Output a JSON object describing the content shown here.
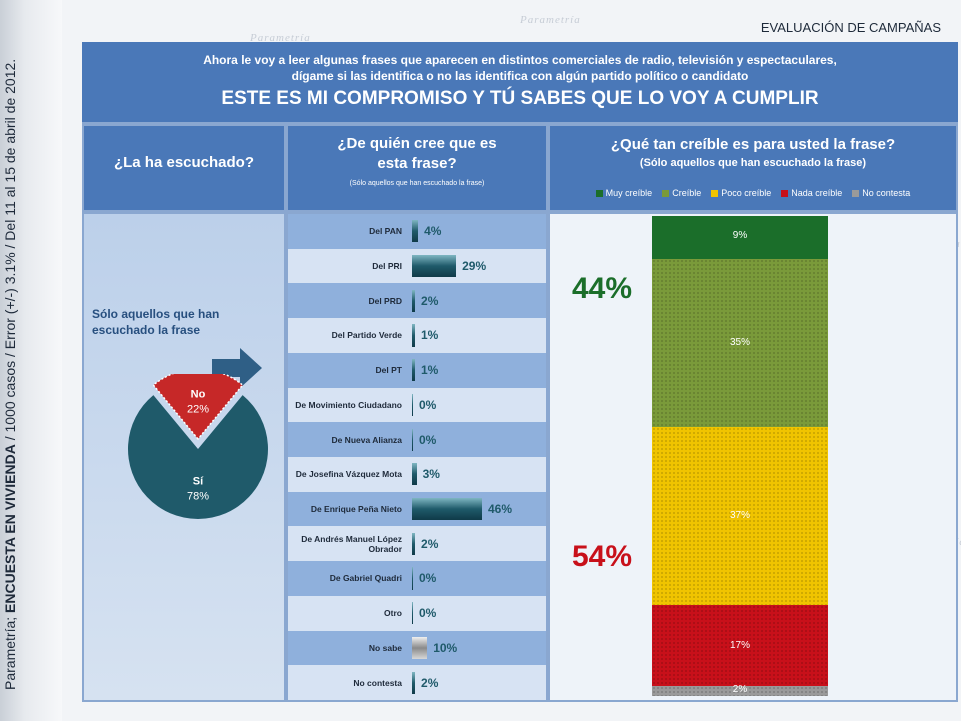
{
  "header": {
    "section_title": "EVALUACIÓN DE CAMPAÑAS"
  },
  "side_caption": {
    "prefix": "Parametría; ",
    "bold": "ENCUESTA EN VIVIENDA",
    "suffix": " / 1000 casos / Error (+/-) 3.1% / Del 11 al 15 de abril de 2012."
  },
  "question": {
    "line1": "Ahora le voy a leer algunas frases que aparecen en distintos comerciales de radio, televisión y espectaculares,",
    "line2": "dígame si las identifica o no las identifica con algún partido político o candidato",
    "phrase": "ESTE ES MI COMPROMISO Y TÚ SABES QUE LO VOY A CUMPLIR"
  },
  "columns": {
    "col1_title": "¿La ha escuchado?",
    "col2_title_line1": "¿De quién cree que es",
    "col2_title_line2": "esta frase?",
    "col2_note": "(Sólo aquellos que han escuchado la frase)",
    "col3_title": "¿Qué tan creíble es para usted la frase?",
    "col3_note": "(Sólo aquellos que han escuchado la frase)"
  },
  "pie_note": "Sólo aquellos que han escuchado la frase",
  "colors": {
    "teal": "#1f5a6a",
    "red": "#c62828",
    "muy": "#1b6e2a",
    "creible": "#7a9a3a",
    "poco": "#f0c400",
    "nada": "#c8101a",
    "nc": "#9a9a9a"
  },
  "chart_data": [
    {
      "type": "pie",
      "title": "¿La ha escuchado?",
      "slices": [
        {
          "label": "Sí",
          "value": 78,
          "display": "78%"
        },
        {
          "label": "No",
          "value": 22,
          "display": "22%"
        }
      ]
    },
    {
      "type": "bar",
      "orientation": "horizontal",
      "title": "¿De quién cree que es esta frase?",
      "categories": [
        "Del PAN",
        "Del PRI",
        "Del PRD",
        "Del Partido Verde",
        "Del PT",
        "De Movimiento Ciudadano",
        "De Nueva Alianza",
        "De Josefina Vázquez Mota",
        "De Enrique Peña Nieto",
        "De Andrés Manuel López Obrador",
        "De Gabriel Quadri",
        "Otro",
        "No sabe",
        "No contesta"
      ],
      "values": [
        4,
        29,
        2,
        1,
        1,
        0,
        0,
        3,
        46,
        2,
        0,
        0,
        10,
        2
      ],
      "value_labels": [
        "4%",
        "29%",
        "2%",
        "1%",
        "1%",
        "0%",
        "0%",
        "3%",
        "46%",
        "2%",
        "0%",
        "0%",
        "10%",
        "2%"
      ]
    },
    {
      "type": "bar",
      "stacked": true,
      "title": "¿Qué tan creíble es para usted la frase?",
      "series": [
        {
          "name": "Muy creíble",
          "values": [
            9
          ],
          "label": "9%"
        },
        {
          "name": "Creíble",
          "values": [
            35
          ],
          "label": "35%"
        },
        {
          "name": "Poco creíble",
          "values": [
            37
          ],
          "label": "37%"
        },
        {
          "name": "Nada creíble",
          "values": [
            17
          ],
          "label": "17%"
        },
        {
          "name": "No contesta",
          "values": [
            2
          ],
          "label": "2%"
        }
      ],
      "annotations": [
        {
          "text": "44%",
          "color": "#1b6e2a"
        },
        {
          "text": "54%",
          "color": "#c8101a"
        }
      ],
      "legend": "top"
    }
  ],
  "deco_word": "Parametría"
}
